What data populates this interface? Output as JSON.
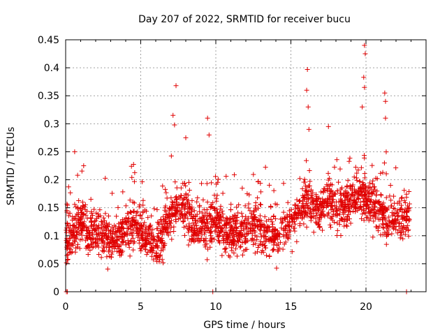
{
  "chart_data": {
    "type": "scatter",
    "title": "Day 207 of 2022, SRMTID for receiver bucu",
    "xlabel": "GPS time / hours",
    "ylabel": "SRMTID / TECUs",
    "xlim": [
      0,
      24
    ],
    "ylim": [
      0,
      0.45
    ],
    "xticks": [
      0,
      5,
      10,
      15,
      20
    ],
    "xtick_labels": [
      "0",
      "5",
      "10",
      "15",
      "20"
    ],
    "yticks": [
      0,
      0.05,
      0.1,
      0.15,
      0.2,
      0.25,
      0.3,
      0.35,
      0.4,
      0.45
    ],
    "ytick_labels": [
      "0",
      "0.05",
      "0.1",
      "0.15",
      "0.2",
      "0.25",
      "0.3",
      "0.35",
      "0.4",
      "0.45"
    ],
    "grid": true,
    "marker": "+",
    "color": "#e00000",
    "trend": [
      {
        "x": 0.0,
        "y": 0.09
      },
      {
        "x": 0.5,
        "y": 0.1
      },
      {
        "x": 1.0,
        "y": 0.13
      },
      {
        "x": 1.5,
        "y": 0.11
      },
      {
        "x": 2.0,
        "y": 0.11
      },
      {
        "x": 2.5,
        "y": 0.1
      },
      {
        "x": 3.0,
        "y": 0.09
      },
      {
        "x": 3.5,
        "y": 0.1
      },
      {
        "x": 4.0,
        "y": 0.11
      },
      {
        "x": 4.5,
        "y": 0.12
      },
      {
        "x": 5.0,
        "y": 0.11
      },
      {
        "x": 5.5,
        "y": 0.1
      },
      {
        "x": 6.0,
        "y": 0.09
      },
      {
        "x": 6.5,
        "y": 0.1
      },
      {
        "x": 7.0,
        "y": 0.14
      },
      {
        "x": 7.5,
        "y": 0.15
      },
      {
        "x": 8.0,
        "y": 0.15
      },
      {
        "x": 8.5,
        "y": 0.12
      },
      {
        "x": 9.0,
        "y": 0.11
      },
      {
        "x": 9.5,
        "y": 0.12
      },
      {
        "x": 10.0,
        "y": 0.13
      },
      {
        "x": 10.5,
        "y": 0.11
      },
      {
        "x": 11.0,
        "y": 0.1
      },
      {
        "x": 11.5,
        "y": 0.11
      },
      {
        "x": 12.0,
        "y": 0.11
      },
      {
        "x": 12.5,
        "y": 0.12
      },
      {
        "x": 13.0,
        "y": 0.11
      },
      {
        "x": 13.5,
        "y": 0.1
      },
      {
        "x": 14.0,
        "y": 0.1
      },
      {
        "x": 14.5,
        "y": 0.11
      },
      {
        "x": 15.0,
        "y": 0.12
      },
      {
        "x": 15.5,
        "y": 0.15
      },
      {
        "x": 16.0,
        "y": 0.16
      },
      {
        "x": 16.5,
        "y": 0.15
      },
      {
        "x": 17.0,
        "y": 0.15
      },
      {
        "x": 17.5,
        "y": 0.16
      },
      {
        "x": 18.0,
        "y": 0.15
      },
      {
        "x": 18.5,
        "y": 0.15
      },
      {
        "x": 19.0,
        "y": 0.16
      },
      {
        "x": 19.5,
        "y": 0.17
      },
      {
        "x": 20.0,
        "y": 0.17
      },
      {
        "x": 20.5,
        "y": 0.15
      },
      {
        "x": 21.0,
        "y": 0.14
      },
      {
        "x": 21.5,
        "y": 0.13
      },
      {
        "x": 22.0,
        "y": 0.13
      },
      {
        "x": 22.5,
        "y": 0.13
      },
      {
        "x": 23.0,
        "y": 0.13
      }
    ],
    "spread": 0.035,
    "samples_per_hour": 100,
    "time_end": 22.9,
    "peaks": [
      {
        "x": 0.6,
        "y": 0.25
      },
      {
        "x": 1.2,
        "y": 0.225
      },
      {
        "x": 7.15,
        "y": 0.315
      },
      {
        "x": 7.35,
        "y": 0.368
      },
      {
        "x": 7.25,
        "y": 0.298
      },
      {
        "x": 8.0,
        "y": 0.275
      },
      {
        "x": 9.45,
        "y": 0.31
      },
      {
        "x": 9.55,
        "y": 0.28
      },
      {
        "x": 16.1,
        "y": 0.397
      },
      {
        "x": 16.05,
        "y": 0.36
      },
      {
        "x": 16.15,
        "y": 0.33
      },
      {
        "x": 16.2,
        "y": 0.29
      },
      {
        "x": 17.5,
        "y": 0.295
      },
      {
        "x": 19.75,
        "y": 0.33
      },
      {
        "x": 19.9,
        "y": 0.44
      },
      {
        "x": 19.95,
        "y": 0.425
      },
      {
        "x": 19.85,
        "y": 0.383
      },
      {
        "x": 19.9,
        "y": 0.365
      },
      {
        "x": 21.25,
        "y": 0.355
      },
      {
        "x": 21.3,
        "y": 0.34
      },
      {
        "x": 21.3,
        "y": 0.31
      }
    ],
    "zeros": [
      {
        "x": 0.05,
        "y": 0
      },
      {
        "x": 0.12,
        "y": 0
      },
      {
        "x": 9.8,
        "y": 0
      },
      {
        "x": 22.7,
        "y": 0
      }
    ]
  }
}
